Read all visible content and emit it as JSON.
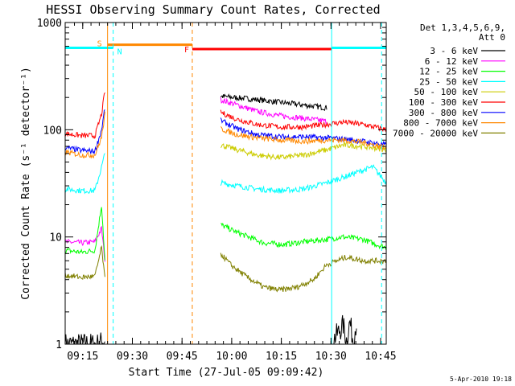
{
  "chart_data": {
    "type": "line",
    "title": "HESSI Observing Summary Count Rates, Corrected",
    "xlabel": "Start Time (27-Jul-05 09:09:42)",
    "ylabel": "Corrected Count Rate (s⁻¹ detector⁻¹)",
    "x_unit": "minutes after 09:09:42",
    "xlim": [
      0,
      97
    ],
    "ylim": [
      1,
      1000
    ],
    "y_scale": "log",
    "grid": false,
    "legend_position": "right",
    "x_ticks": [
      {
        "label": "09:15",
        "x": 5.3
      },
      {
        "label": "09:30",
        "x": 20.3
      },
      {
        "label": "09:45",
        "x": 35.3
      },
      {
        "label": "10:00",
        "x": 50.3
      },
      {
        "label": "10:15",
        "x": 65.3
      },
      {
        "label": "10:30",
        "x": 80.3
      },
      {
        "label": "10:45",
        "x": 95.3
      }
    ],
    "y_ticks": [
      {
        "label": "1",
        "y": 1
      },
      {
        "label": "10",
        "y": 10
      },
      {
        "label": "100",
        "y": 100
      },
      {
        "label": "1000",
        "y": 1000
      }
    ],
    "legend_title": [
      "Det 1,3,4,5,6,9,",
      "Att 0"
    ],
    "series": [
      {
        "name": "3 - 6 keV",
        "color": "#000000",
        "segments": [
          {
            "x": [
              0,
              5,
              10,
              12
            ],
            "y": [
              1,
              1,
              1,
              1.1
            ]
          },
          {
            "x": [
              47,
              55,
              65,
              72,
              79
            ],
            "y": [
              205,
              195,
              180,
              170,
              160
            ]
          },
          {
            "x": [
              81,
              84,
              85,
              86,
              87,
              88
            ],
            "y": [
              1.1,
              1.5,
              1.1,
              1.6,
              1.1,
              1.6
            ]
          }
        ]
      },
      {
        "name": "6 - 12 keV",
        "color": "#ff00ff",
        "segments": [
          {
            "x": [
              0,
              5,
              9,
              11,
              12
            ],
            "y": [
              9,
              8.8,
              9,
              12,
              6
            ]
          },
          {
            "x": [
              47,
              52,
              58,
              65,
              72,
              79
            ],
            "y": [
              190,
              170,
              148,
              135,
              128,
              120
            ]
          }
        ]
      },
      {
        "name": "12 - 25 keV",
        "color": "#00ff00",
        "segments": [
          {
            "x": [
              0,
              5,
              9,
              11,
              12
            ],
            "y": [
              7.5,
              7.2,
              7.5,
              20,
              6
            ]
          },
          {
            "x": [
              47,
              52,
              60,
              66,
              72,
              79,
              84,
              90,
              94,
              97
            ],
            "y": [
              13,
              11,
              8.8,
              8.5,
              9,
              9.5,
              10,
              9.5,
              8.5,
              8
            ]
          }
        ]
      },
      {
        "name": "25 - 50 keV",
        "color": "#00ffff",
        "segments": [
          {
            "x": [
              0,
              5,
              9,
              11,
              12
            ],
            "y": [
              28,
              27,
              27,
              45,
              60
            ]
          },
          {
            "x": [
              47,
              52,
              58,
              65,
              72,
              79,
              84,
              90,
              93,
              97
            ],
            "y": [
              32,
              30,
              28,
              27,
              28,
              32,
              36,
              42,
              45,
              32
            ]
          }
        ]
      },
      {
        "name": "50 - 100 keV",
        "color": "#cccc00",
        "segments": [
          {
            "x": [
              47,
              52,
              58,
              65,
              72,
              79,
              84,
              90,
              97
            ],
            "y": [
              72,
              65,
              58,
              55,
              58,
              65,
              72,
              70,
              65
            ]
          }
        ]
      },
      {
        "name": "100 - 300 keV",
        "color": "#ff0000",
        "segments": [
          {
            "x": [
              0,
              5,
              9,
              11,
              12
            ],
            "y": [
              92,
              88,
              88,
              140,
              230
            ]
          },
          {
            "x": [
              47,
              52,
              58,
              65,
              72,
              79,
              84,
              90,
              97
            ],
            "y": [
              145,
              125,
              112,
              106,
              106,
              112,
              118,
              112,
              100
            ]
          }
        ]
      },
      {
        "name": "300 - 800 keV",
        "color": "#0000ff",
        "segments": [
          {
            "x": [
              0,
              5,
              9,
              11,
              12
            ],
            "y": [
              68,
              64,
              63,
              100,
              160
            ]
          },
          {
            "x": [
              47,
              52,
              58,
              65,
              72,
              79,
              84,
              90,
              97
            ],
            "y": [
              122,
              102,
              90,
              86,
              86,
              84,
              82,
              78,
              72
            ]
          }
        ]
      },
      {
        "name": "800 - 7000 keV",
        "color": "#ff8800",
        "segments": [
          {
            "x": [
              0,
              5,
              9,
              11,
              12
            ],
            "y": [
              62,
              58,
              58,
              85,
              140
            ]
          },
          {
            "x": [
              47,
              52,
              58,
              65,
              72,
              79,
              84,
              90,
              97
            ],
            "y": [
              102,
              90,
              84,
              80,
              78,
              80,
              80,
              76,
              68
            ]
          }
        ]
      },
      {
        "name": "7000 - 20000 keV",
        "color": "#808000",
        "segments": [
          {
            "x": [
              0,
              5,
              9,
              11,
              12
            ],
            "y": [
              4.4,
              4.2,
              4.3,
              8,
              4
            ]
          },
          {
            "x": [
              47,
              50,
              55,
              60,
              65,
              70,
              75,
              79,
              85,
              90,
              97
            ],
            "y": [
              7,
              5.5,
              4.2,
              3.4,
              3.2,
              3.4,
              4,
              5.5,
              6.5,
              6,
              6
            ]
          }
        ]
      }
    ],
    "flags": [
      {
        "name": "S",
        "color": "#ff8800",
        "label": "S",
        "x_start": 12.8,
        "x_end": 38.4,
        "y": 620
      },
      {
        "name": "N",
        "color": "#00ffff",
        "label": "N",
        "x_start": 0,
        "x_end": 14.5,
        "y": 580
      },
      {
        "name": "N",
        "color": "#00ffff",
        "label": "",
        "x_start": 80.5,
        "x_end": 97,
        "y": 580
      },
      {
        "name": "F",
        "color": "#ff0000",
        "label": "F",
        "x_start": 38.4,
        "x_end": 80.5,
        "y": 565
      }
    ],
    "vertical_markers": [
      {
        "x": 12.8,
        "color": "#ff8800",
        "style": "solid"
      },
      {
        "x": 14.5,
        "color": "#00ffff",
        "style": "dashed"
      },
      {
        "x": 38.4,
        "color": "#ff8800",
        "style": "dashed"
      },
      {
        "x": 80.5,
        "color": "#00ffff",
        "style": "solid"
      },
      {
        "x": 95.6,
        "color": "#00ffff",
        "style": "dashed"
      }
    ],
    "footer": "5-Apr-2010 19:18"
  }
}
